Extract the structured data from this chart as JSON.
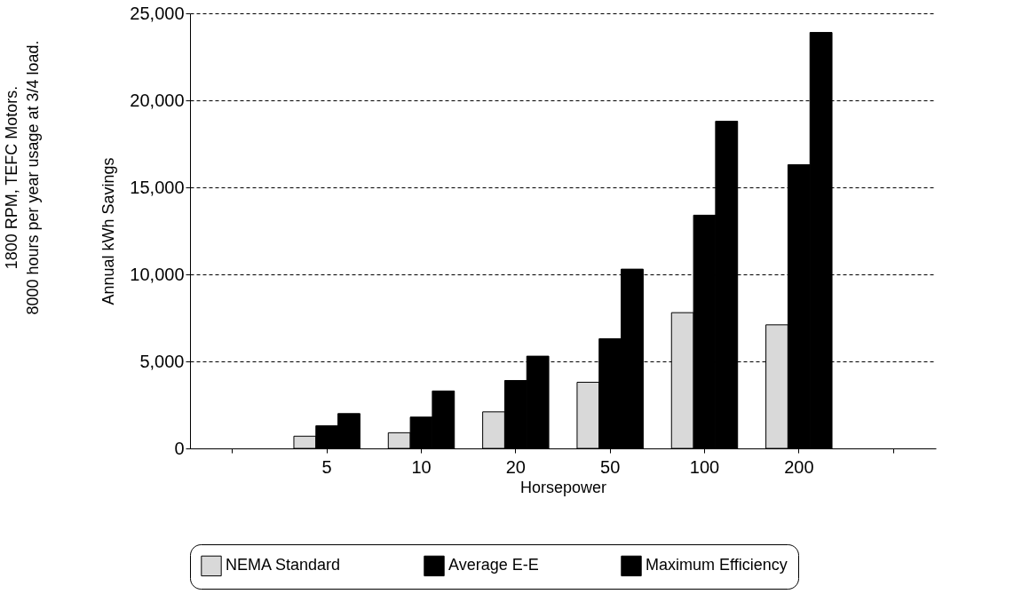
{
  "chart_data": {
    "type": "bar",
    "xlabel": "Horsepower",
    "ylabel": "Annual kWh Savings",
    "annotations": [
      "1800 RPM, TEFC Motors.",
      "8000 hours per year usage at 3/4 load."
    ],
    "categories": [
      null,
      "5",
      "10",
      "20",
      "50",
      "100",
      "200",
      null
    ],
    "series": [
      {
        "name": "NEMA Standard",
        "color": "#d9d9d9",
        "values": [
          null,
          700,
          900,
          2100,
          3800,
          7800,
          7100,
          null
        ]
      },
      {
        "name": "Average E-E",
        "color": "#000000",
        "values": [
          null,
          1300,
          1800,
          3900,
          6300,
          13400,
          16300,
          null
        ]
      },
      {
        "name": "Maximum Efficiency",
        "color": "#000000",
        "values": [
          null,
          2000,
          3300,
          5300,
          10300,
          18800,
          23900,
          null
        ]
      }
    ],
    "ylim": [
      0,
      25000
    ],
    "yticks": [
      {
        "value": 0,
        "label": "0"
      },
      {
        "value": 5000,
        "label": "5,000"
      },
      {
        "value": 10000,
        "label": "10,000"
      },
      {
        "value": 15000,
        "label": "15,000"
      },
      {
        "value": 20000,
        "label": "20,000"
      },
      {
        "value": 25000,
        "label": "25,000"
      }
    ],
    "grid": "y",
    "legend": "bottom"
  }
}
